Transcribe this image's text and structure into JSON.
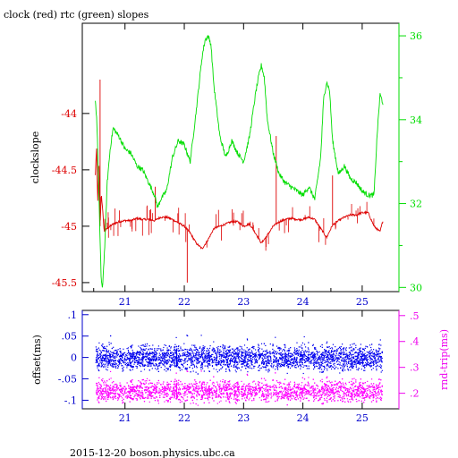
{
  "chart_data": [
    {
      "type": "line",
      "title": "clock (red) rtc (green) slopes",
      "ylabel": "clockslope",
      "x_ticks": [
        21,
        22,
        23,
        24,
        25
      ],
      "xlim": [
        20.28,
        25.62
      ],
      "left_axis": {
        "ticks": [
          -44,
          -44.5,
          -45,
          -45.5
        ],
        "ylim": [
          -45.58,
          -43.2
        ],
        "color": "#dd0000"
      },
      "right_axis": {
        "ticks": [
          30,
          32,
          34,
          36
        ],
        "ylim": [
          29.9,
          36.3
        ],
        "color": "#00dd00"
      },
      "series": [
        {
          "name": "clock",
          "color": "#dd0000",
          "axis": "left",
          "x": [
            20.5,
            20.52,
            20.54,
            20.56,
            20.58,
            20.6,
            20.65,
            20.7,
            20.8,
            20.9,
            21.0,
            21.1,
            21.2,
            21.3,
            21.4,
            21.5,
            21.6,
            21.7,
            21.8,
            21.9,
            22.0,
            22.1,
            22.2,
            22.3,
            22.4,
            22.5,
            22.6,
            22.7,
            22.8,
            22.9,
            23.0,
            23.1,
            23.2,
            23.3,
            23.4,
            23.5,
            23.6,
            23.7,
            23.8,
            23.9,
            24.0,
            24.1,
            24.2,
            24.3,
            24.4,
            24.5,
            24.6,
            24.7,
            24.8,
            24.9,
            25.0,
            25.1,
            25.2,
            25.3,
            25.35
          ],
          "y": [
            -44.55,
            -44.3,
            -44.8,
            -44.4,
            -45.0,
            -44.7,
            -45.05,
            -45.02,
            -44.98,
            -44.96,
            -44.95,
            -44.95,
            -44.93,
            -44.94,
            -44.94,
            -44.95,
            -44.92,
            -44.92,
            -44.94,
            -44.97,
            -45.0,
            -45.06,
            -45.15,
            -45.2,
            -45.12,
            -45.02,
            -45.0,
            -44.98,
            -44.96,
            -44.96,
            -45.0,
            -44.98,
            -45.06,
            -45.15,
            -45.08,
            -45.0,
            -44.96,
            -44.94,
            -44.93,
            -44.94,
            -44.94,
            -44.92,
            -44.94,
            -45.02,
            -45.1,
            -44.99,
            -44.95,
            -44.92,
            -44.9,
            -44.9,
            -44.88,
            -44.88,
            -45.0,
            -45.05,
            -44.95
          ]
        },
        {
          "name": "rtc",
          "color": "#00dd00",
          "axis": "right",
          "x": [
            20.5,
            20.53,
            20.56,
            20.6,
            20.62,
            20.66,
            20.7,
            20.75,
            20.8,
            20.9,
            21.0,
            21.1,
            21.2,
            21.3,
            21.4,
            21.5,
            21.55,
            21.6,
            21.7,
            21.8,
            21.9,
            22.0,
            22.1,
            22.2,
            22.3,
            22.35,
            22.4,
            22.45,
            22.5,
            22.6,
            22.7,
            22.8,
            22.9,
            23.0,
            23.1,
            23.2,
            23.25,
            23.3,
            23.35,
            23.4,
            23.5,
            23.6,
            23.7,
            23.8,
            23.9,
            24.0,
            24.1,
            24.2,
            24.3,
            24.35,
            24.4,
            24.45,
            24.5,
            24.6,
            24.7,
            24.8,
            24.9,
            25.0,
            25.1,
            25.2,
            25.25,
            25.3,
            25.35
          ],
          "y": [
            34.5,
            33.8,
            32.2,
            30.1,
            30.0,
            31.0,
            32.5,
            33.3,
            33.8,
            33.6,
            33.3,
            33.2,
            32.9,
            32.8,
            32.5,
            32.2,
            31.9,
            32.1,
            32.3,
            33.1,
            33.5,
            33.4,
            33.0,
            34.2,
            35.5,
            35.9,
            36.0,
            35.8,
            34.8,
            33.6,
            33.1,
            33.5,
            33.2,
            33.0,
            33.6,
            34.6,
            35.0,
            35.3,
            35.0,
            34.0,
            33.2,
            32.7,
            32.5,
            32.4,
            32.3,
            32.2,
            32.4,
            32.1,
            33.1,
            34.5,
            34.9,
            34.7,
            33.5,
            32.7,
            32.9,
            32.6,
            32.5,
            32.3,
            32.2,
            32.2,
            33.6,
            34.6,
            34.4
          ]
        }
      ]
    },
    {
      "type": "scatter",
      "ylabel": "offset(ms)",
      "ylabel_right": "rnd-trip(ms)",
      "x_ticks": [
        21,
        22,
        23,
        24,
        25
      ],
      "xlim": [
        20.28,
        25.62
      ],
      "left_axis": {
        "ticks": [
          0.1,
          0.05,
          0,
          -0.05,
          -0.1
        ],
        "ylim": [
          -0.12,
          0.11
        ],
        "color": "#0000cc"
      },
      "right_axis": {
        "ticks": [
          0.5,
          0.4,
          0.3,
          0.2
        ],
        "ylim": [
          0.14,
          0.52
        ],
        "color": "#ee00ee"
      },
      "series": [
        {
          "name": "offset",
          "color": "#0000ee",
          "axis": "left",
          "x_range": [
            20.5,
            25.33
          ],
          "center": 0.0,
          "spread": 0.015,
          "step_at": 21.87
        },
        {
          "name": "rnd-trip",
          "color": "#ff00ff",
          "axis": "right",
          "x_range": [
            20.5,
            25.33
          ],
          "center": 0.21,
          "spread": 0.022,
          "step_at": 21.87
        }
      ]
    }
  ],
  "footer": "2015-12-20  boson.physics.ubc.ca"
}
